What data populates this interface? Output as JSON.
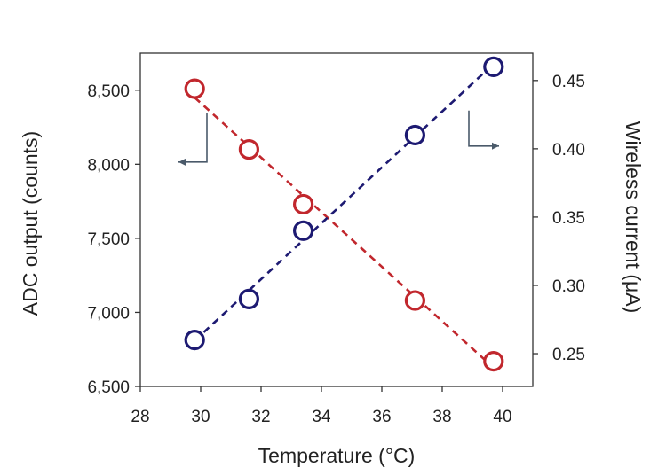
{
  "chart_data": {
    "type": "scatter",
    "xlabel": "Temperature (°C)",
    "ylabel_left": "ADC output (counts)",
    "ylabel_right": "Wireless current (μA)",
    "xlim": [
      28,
      41
    ],
    "ylim_left": [
      6500,
      8750
    ],
    "ylim_right": [
      0.226,
      0.47
    ],
    "x_ticks": [
      28,
      30,
      32,
      34,
      36,
      38,
      40
    ],
    "x_tick_labels": [
      "28",
      "30",
      "32",
      "34",
      "36",
      "38",
      "40"
    ],
    "y_left_ticks": [
      6500,
      7000,
      7500,
      8000,
      8500
    ],
    "y_left_tick_labels": [
      "6,500",
      "7,000",
      "7,500",
      "8,000",
      "8,500"
    ],
    "y_right_ticks": [
      0.25,
      0.3,
      0.35,
      0.4,
      0.45
    ],
    "y_right_tick_labels": [
      "0.25",
      "0.30",
      "0.35",
      "0.40",
      "0.45"
    ],
    "grid": false,
    "series": [
      {
        "axis": "left",
        "color": "#c1272d",
        "marker": "open-circle",
        "line": "dashed",
        "x": [
          29.8,
          31.6,
          33.4,
          37.1,
          39.7
        ],
        "y": [
          8510,
          8100,
          7730,
          7080,
          6670
        ],
        "indicator": "arrow-left"
      },
      {
        "axis": "right",
        "color": "#1d1a72",
        "marker": "open-circle",
        "line": "dashed",
        "x": [
          29.8,
          31.6,
          33.4,
          37.1,
          39.7
        ],
        "y": [
          0.26,
          0.29,
          0.34,
          0.41,
          0.46
        ],
        "indicator": "arrow-right"
      }
    ]
  }
}
